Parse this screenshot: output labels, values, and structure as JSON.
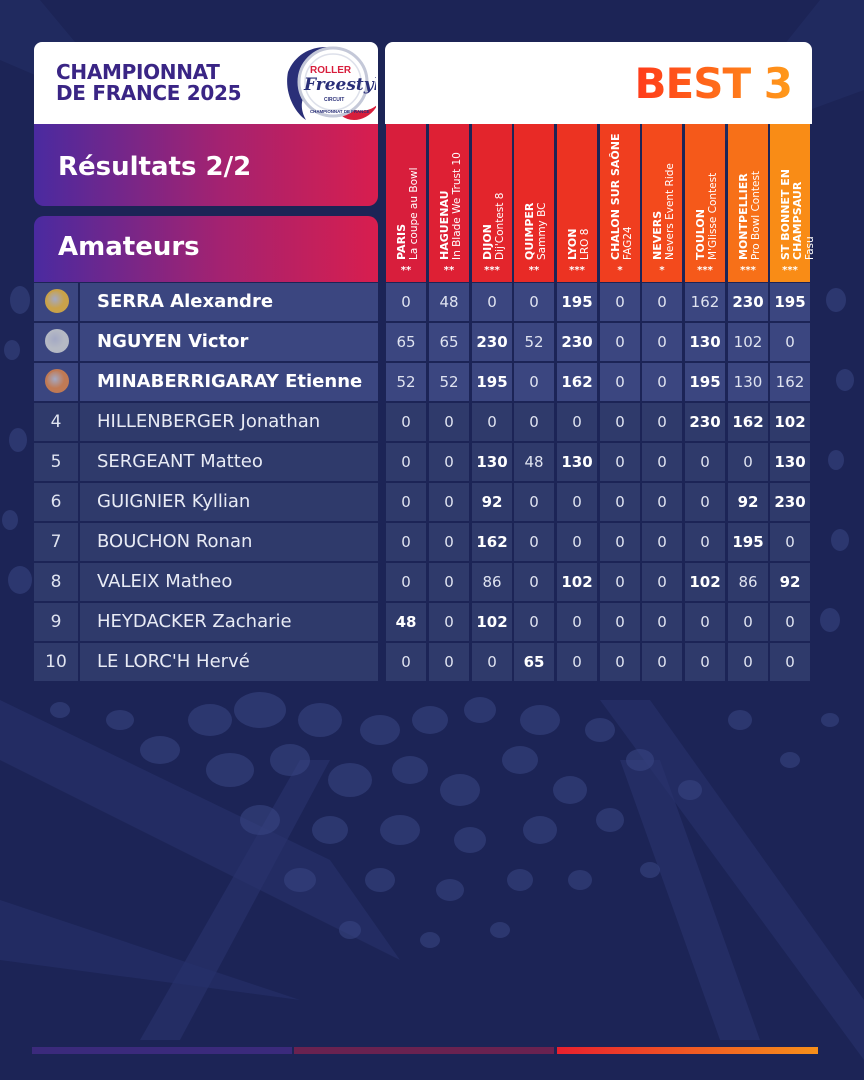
{
  "header": {
    "title_line1": "CHAMPIONNAT",
    "title_line2": "DE FRANCE 2025",
    "logo_text_top": "ROLLER",
    "logo_text_main": "Freestyle",
    "logo_text_sub": "CIRCUIT",
    "logo_text_ring": "CHAMPIONNAT DE FRANCE",
    "best_label": "BEST 3"
  },
  "banners": {
    "results": "Résultats 2/2",
    "category": "Amateurs"
  },
  "colors": {
    "background": "#1c2456",
    "cell": "#2f3a6b",
    "gold": "#c9a24a",
    "silver": "#b5b9c4",
    "bronze": "#c07a55"
  },
  "events": [
    {
      "city": "PARIS",
      "event": "La coupe au Bowl",
      "stars": "**",
      "color": "#d81e3c"
    },
    {
      "city": "HAGUENAU",
      "event": "In Blade We Trust 10",
      "stars": "**",
      "color": "#de2034"
    },
    {
      "city": "DIJON",
      "event": "Dij'Contest 8",
      "stars": "***",
      "color": "#e3252c"
    },
    {
      "city": "QUIMPER",
      "event": "Sammy BC",
      "stars": "**",
      "color": "#e82a26"
    },
    {
      "city": "LYON",
      "event": "LRO 8",
      "stars": "***",
      "color": "#ec3322"
    },
    {
      "city": "CHALON SUR SAÔNE",
      "event": "FAG24",
      "stars": "*",
      "color": "#f03e1f"
    },
    {
      "city": "NEVERS",
      "event": "Nevers Event Ride",
      "stars": "*",
      "color": "#f34a1c"
    },
    {
      "city": "TOULON",
      "event": "M'Glisse Contest",
      "stars": "***",
      "color": "#f5591a"
    },
    {
      "city": "MONTPELLIER",
      "event": "Pro Bowl Contest",
      "stars": "***",
      "color": "#f77018"
    },
    {
      "city": "ST BONNET EN CHAMPSAUR",
      "event": "Fasu",
      "stars": "***",
      "color": "#f98c16"
    }
  ],
  "rows": [
    {
      "rank": "",
      "medal": "gold",
      "name": "SERRA Alexandre",
      "values": [
        "0",
        "48",
        "0",
        "0",
        "195",
        "0",
        "0",
        "162",
        "230",
        "195"
      ],
      "best": [
        4,
        8,
        9
      ]
    },
    {
      "rank": "",
      "medal": "silver",
      "name": "NGUYEN Victor",
      "values": [
        "65",
        "65",
        "230",
        "52",
        "230",
        "0",
        "0",
        "130",
        "102",
        "0"
      ],
      "best": [
        2,
        4,
        7
      ]
    },
    {
      "rank": "",
      "medal": "bronze",
      "name": "MINABERRIGARAY Etienne",
      "values": [
        "52",
        "52",
        "195",
        "0",
        "162",
        "0",
        "0",
        "195",
        "130",
        "162"
      ],
      "best": [
        2,
        4,
        7
      ]
    },
    {
      "rank": "4",
      "medal": "",
      "name": "HILLENBERGER Jonathan",
      "values": [
        "0",
        "0",
        "0",
        "0",
        "0",
        "0",
        "0",
        "230",
        "162",
        "102"
      ],
      "best": [
        7,
        8,
        9
      ]
    },
    {
      "rank": "5",
      "medal": "",
      "name": "SERGEANT Matteo",
      "values": [
        "0",
        "0",
        "130",
        "48",
        "130",
        "0",
        "0",
        "0",
        "0",
        "130"
      ],
      "best": [
        2,
        4,
        9
      ]
    },
    {
      "rank": "6",
      "medal": "",
      "name": "GUIGNIER Kyllian",
      "values": [
        "0",
        "0",
        "92",
        "0",
        "0",
        "0",
        "0",
        "0",
        "92",
        "230"
      ],
      "best": [
        2,
        8,
        9
      ]
    },
    {
      "rank": "7",
      "medal": "",
      "name": "BOUCHON Ronan",
      "values": [
        "0",
        "0",
        "162",
        "0",
        "0",
        "0",
        "0",
        "0",
        "195",
        "0"
      ],
      "best": [
        2,
        8
      ]
    },
    {
      "rank": "8",
      "medal": "",
      "name": "VALEIX Matheo",
      "values": [
        "0",
        "0",
        "86",
        "0",
        "102",
        "0",
        "0",
        "102",
        "86",
        "92"
      ],
      "best": [
        4,
        7,
        9
      ]
    },
    {
      "rank": "9",
      "medal": "",
      "name": "HEYDACKER Zacharie",
      "values": [
        "48",
        "0",
        "102",
        "0",
        "0",
        "0",
        "0",
        "0",
        "0",
        "0"
      ],
      "best": [
        0,
        2
      ]
    },
    {
      "rank": "10",
      "medal": "",
      "name": "LE LORC'H Hervé",
      "values": [
        "0",
        "0",
        "0",
        "65",
        "0",
        "0",
        "0",
        "0",
        "0",
        "0"
      ],
      "best": [
        3
      ]
    }
  ]
}
